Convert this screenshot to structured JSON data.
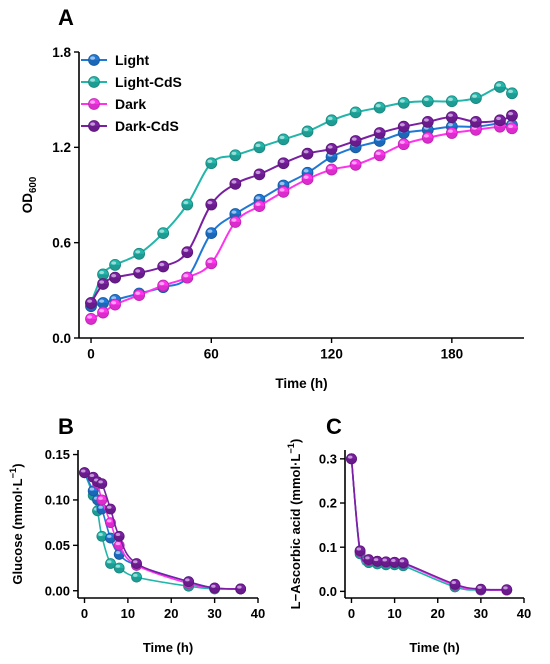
{
  "colors": {
    "Light": "#1f78d6",
    "Light-CdS": "#22b5aa",
    "Dark": "#ff33ee",
    "Dark-CdS": "#7a1fa2"
  },
  "chart_data": [
    {
      "panel": "A",
      "type": "line",
      "xlabel": "Time (h)",
      "ylabel": "OD",
      "ylabel_sub": "600",
      "xlim": [
        -6,
        216
      ],
      "ylim": [
        0,
        1.8
      ],
      "xticks": [
        0,
        60,
        120,
        180
      ],
      "xtick_labels": [
        "0",
        "60",
        "120",
        "180"
      ],
      "yticks": [
        0,
        0.6,
        1.2,
        1.8
      ],
      "ytick_labels": [
        "0.0",
        "0.6",
        "1.2",
        "1.8"
      ],
      "legend": "top-left",
      "series": [
        {
          "name": "Light",
          "color": "#1f78d6",
          "x": [
            0,
            6,
            12,
            24,
            36,
            48,
            60,
            72,
            84,
            96,
            108,
            120,
            132,
            144,
            156,
            168,
            180,
            192,
            204,
            210
          ],
          "y": [
            0.2,
            0.22,
            0.24,
            0.28,
            0.32,
            0.38,
            0.66,
            0.78,
            0.87,
            0.96,
            1.04,
            1.14,
            1.2,
            1.24,
            1.29,
            1.31,
            1.33,
            1.33,
            1.35,
            1.34
          ]
        },
        {
          "name": "Light-CdS",
          "color": "#22b5aa",
          "x": [
            0,
            6,
            12,
            24,
            36,
            48,
            60,
            72,
            84,
            96,
            108,
            120,
            132,
            144,
            156,
            168,
            180,
            192,
            204,
            210
          ],
          "y": [
            0.22,
            0.4,
            0.46,
            0.53,
            0.66,
            0.84,
            1.1,
            1.15,
            1.2,
            1.25,
            1.3,
            1.37,
            1.42,
            1.45,
            1.48,
            1.49,
            1.49,
            1.51,
            1.58,
            1.54
          ]
        },
        {
          "name": "Dark",
          "color": "#ff33ee",
          "x": [
            0,
            6,
            12,
            24,
            36,
            48,
            60,
            72,
            84,
            96,
            108,
            120,
            132,
            144,
            156,
            168,
            180,
            192,
            204,
            210
          ],
          "y": [
            0.12,
            0.16,
            0.21,
            0.27,
            0.33,
            0.38,
            0.47,
            0.73,
            0.83,
            0.92,
            1.0,
            1.06,
            1.09,
            1.15,
            1.22,
            1.26,
            1.29,
            1.31,
            1.33,
            1.32
          ]
        },
        {
          "name": "Dark-CdS",
          "color": "#7a1fa2",
          "x": [
            0,
            6,
            12,
            24,
            36,
            48,
            60,
            72,
            84,
            96,
            108,
            120,
            132,
            144,
            156,
            168,
            180,
            192,
            204,
            210
          ],
          "y": [
            0.22,
            0.34,
            0.38,
            0.41,
            0.45,
            0.54,
            0.84,
            0.97,
            1.03,
            1.1,
            1.16,
            1.19,
            1.24,
            1.29,
            1.33,
            1.36,
            1.39,
            1.36,
            1.37,
            1.4
          ]
        }
      ]
    },
    {
      "panel": "B",
      "type": "line",
      "xlabel": "Time (h)",
      "ylabel": "Glucose (mmol·L",
      "ylabel_sup": "−1",
      "ylabel_end": ")",
      "xlim": [
        -1.5,
        40
      ],
      "ylim": [
        -0.008,
        0.155
      ],
      "xticks": [
        0,
        10,
        20,
        30,
        40
      ],
      "xtick_labels": [
        "0",
        "10",
        "20",
        "30",
        "40"
      ],
      "yticks": [
        0,
        0.05,
        0.1,
        0.15
      ],
      "ytick_labels": [
        "0.00",
        "0.05",
        "0.10",
        "0.15"
      ],
      "series": [
        {
          "name": "Light",
          "color": "#1f78d6",
          "x": [
            0,
            2,
            3,
            4,
            6,
            8,
            12,
            24,
            30,
            36
          ],
          "y": [
            0.13,
            0.11,
            0.1,
            0.09,
            0.058,
            0.04,
            0.028,
            0.01,
            0.003,
            0.002
          ]
        },
        {
          "name": "Light-CdS",
          "color": "#22b5aa",
          "x": [
            0,
            2,
            3,
            4,
            6,
            8,
            12,
            24,
            30,
            36
          ],
          "y": [
            0.13,
            0.105,
            0.088,
            0.06,
            0.03,
            0.025,
            0.015,
            0.005,
            0.002,
            0.002
          ]
        },
        {
          "name": "Dark",
          "color": "#ff33ee",
          "x": [
            0,
            2,
            3,
            4,
            6,
            8,
            12,
            24,
            30,
            36
          ],
          "y": [
            0.13,
            0.125,
            0.118,
            0.1,
            0.075,
            0.05,
            0.028,
            0.008,
            0.003,
            0.002
          ]
        },
        {
          "name": "Dark-CdS",
          "color": "#7a1fa2",
          "x": [
            0,
            2,
            3,
            4,
            6,
            8,
            12,
            24,
            30,
            36
          ],
          "y": [
            0.13,
            0.125,
            0.12,
            0.118,
            0.09,
            0.06,
            0.03,
            0.01,
            0.003,
            0.002
          ]
        }
      ]
    },
    {
      "panel": "C",
      "type": "line",
      "xlabel": "Time (h)",
      "ylabel": "L−Ascorbic acid (mmol·L",
      "ylabel_sup": "−1",
      "ylabel_end": ")",
      "xlim": [
        -1.5,
        40
      ],
      "ylim": [
        -0.015,
        0.32
      ],
      "xticks": [
        0,
        10,
        20,
        30,
        40
      ],
      "xtick_labels": [
        "0",
        "10",
        "20",
        "30",
        "40"
      ],
      "yticks": [
        0,
        0.1,
        0.2,
        0.3
      ],
      "ytick_labels": [
        "0.0",
        "0.1",
        "0.2",
        "0.3"
      ],
      "series": [
        {
          "name": "Light",
          "color": "#1f78d6",
          "x": [
            0,
            2,
            4,
            6,
            8,
            10,
            12,
            24,
            30,
            36
          ],
          "y": [
            0.3,
            0.09,
            0.07,
            0.068,
            0.066,
            0.065,
            0.063,
            0.015,
            0.004,
            0.003
          ]
        },
        {
          "name": "Light-CdS",
          "color": "#22b5aa",
          "x": [
            0,
            2,
            4,
            6,
            8,
            10,
            12,
            24,
            30,
            36
          ],
          "y": [
            0.3,
            0.085,
            0.065,
            0.062,
            0.06,
            0.06,
            0.058,
            0.01,
            0.003,
            0.003
          ]
        },
        {
          "name": "Dark",
          "color": "#ff33ee",
          "x": [
            0,
            2,
            4,
            6,
            8,
            10,
            12,
            24,
            30,
            36
          ],
          "y": [
            0.3,
            0.09,
            0.07,
            0.068,
            0.066,
            0.066,
            0.064,
            0.014,
            0.004,
            0.003
          ]
        },
        {
          "name": "Dark-CdS",
          "color": "#7a1fa2",
          "x": [
            0,
            2,
            4,
            6,
            8,
            10,
            12,
            24,
            30,
            36
          ],
          "y": [
            0.3,
            0.092,
            0.072,
            0.068,
            0.067,
            0.066,
            0.065,
            0.016,
            0.005,
            0.004
          ]
        }
      ]
    }
  ]
}
